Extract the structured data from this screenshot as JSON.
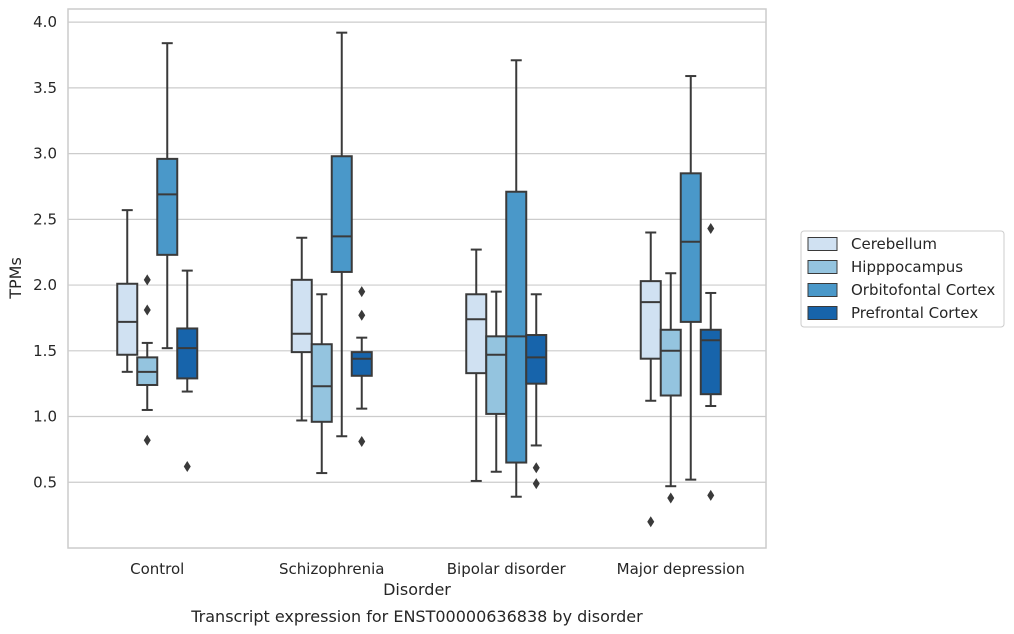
{
  "chart_data": {
    "type": "box",
    "title": "",
    "caption": "Transcript expression for ENST00000636838 by disorder",
    "xlabel": "Disorder",
    "ylabel": "TPMs",
    "ylim": [
      0.0,
      4.1
    ],
    "yticks": [
      "0.5",
      "1.0",
      "1.5",
      "2.0",
      "2.5",
      "3.0",
      "3.5",
      "4.0"
    ],
    "grid": "horizontal",
    "legend_position": "right",
    "categories": [
      "Control",
      "Schizophrenia",
      "Bipolar disorder",
      "Major depression"
    ],
    "series": [
      {
        "name": "Cerebellum",
        "color": "#d0e1f2",
        "boxes": [
          {
            "whisker_low": 1.34,
            "q1": 1.47,
            "median": 1.72,
            "q3": 2.01,
            "whisker_high": 2.57,
            "outliers": []
          },
          {
            "whisker_low": 0.97,
            "q1": 1.49,
            "median": 1.63,
            "q3": 2.04,
            "whisker_high": 2.36,
            "outliers": []
          },
          {
            "whisker_low": 0.51,
            "q1": 1.33,
            "median": 1.74,
            "q3": 1.93,
            "whisker_high": 2.27,
            "outliers": []
          },
          {
            "whisker_low": 1.12,
            "q1": 1.44,
            "median": 1.87,
            "q3": 2.03,
            "whisker_high": 2.4,
            "outliers": [
              0.2
            ]
          }
        ]
      },
      {
        "name": "Hipppocampus",
        "color": "#94c4df",
        "boxes": [
          {
            "whisker_low": 1.05,
            "q1": 1.24,
            "median": 1.34,
            "q3": 1.45,
            "whisker_high": 1.56,
            "outliers": [
              2.04,
              1.81,
              0.82
            ]
          },
          {
            "whisker_low": 0.57,
            "q1": 0.96,
            "median": 1.23,
            "q3": 1.55,
            "whisker_high": 1.93,
            "outliers": []
          },
          {
            "whisker_low": 0.58,
            "q1": 1.02,
            "median": 1.47,
            "q3": 1.61,
            "whisker_high": 1.95,
            "outliers": []
          },
          {
            "whisker_low": 0.47,
            "q1": 1.16,
            "median": 1.5,
            "q3": 1.66,
            "whisker_high": 2.09,
            "outliers": [
              0.38
            ]
          }
        ]
      },
      {
        "name": "Orbitofontal Cortex",
        "color": "#4a98c9",
        "boxes": [
          {
            "whisker_low": 1.52,
            "q1": 2.23,
            "median": 2.69,
            "q3": 2.96,
            "whisker_high": 3.84,
            "outliers": []
          },
          {
            "whisker_low": 0.85,
            "q1": 2.1,
            "median": 2.37,
            "q3": 2.98,
            "whisker_high": 3.92,
            "outliers": []
          },
          {
            "whisker_low": 0.39,
            "q1": 0.65,
            "median": 1.61,
            "q3": 2.71,
            "whisker_high": 3.71,
            "outliers": []
          },
          {
            "whisker_low": 0.52,
            "q1": 1.72,
            "median": 2.33,
            "q3": 2.85,
            "whisker_high": 3.59,
            "outliers": []
          }
        ]
      },
      {
        "name": "Prefrontal Cortex",
        "color": "#1764ab",
        "boxes": [
          {
            "whisker_low": 1.19,
            "q1": 1.29,
            "median": 1.52,
            "q3": 1.67,
            "whisker_high": 2.11,
            "outliers": [
              0.62
            ]
          },
          {
            "whisker_low": 1.06,
            "q1": 1.31,
            "median": 1.44,
            "q3": 1.49,
            "whisker_high": 1.6,
            "outliers": [
              1.95,
              1.77,
              0.81
            ]
          },
          {
            "whisker_low": 0.78,
            "q1": 1.25,
            "median": 1.45,
            "q3": 1.62,
            "whisker_high": 1.93,
            "outliers": [
              0.61,
              0.49
            ]
          },
          {
            "whisker_low": 1.08,
            "q1": 1.17,
            "median": 1.58,
            "q3": 1.66,
            "whisker_high": 1.94,
            "outliers": [
              2.43,
              0.4
            ]
          }
        ]
      }
    ]
  }
}
